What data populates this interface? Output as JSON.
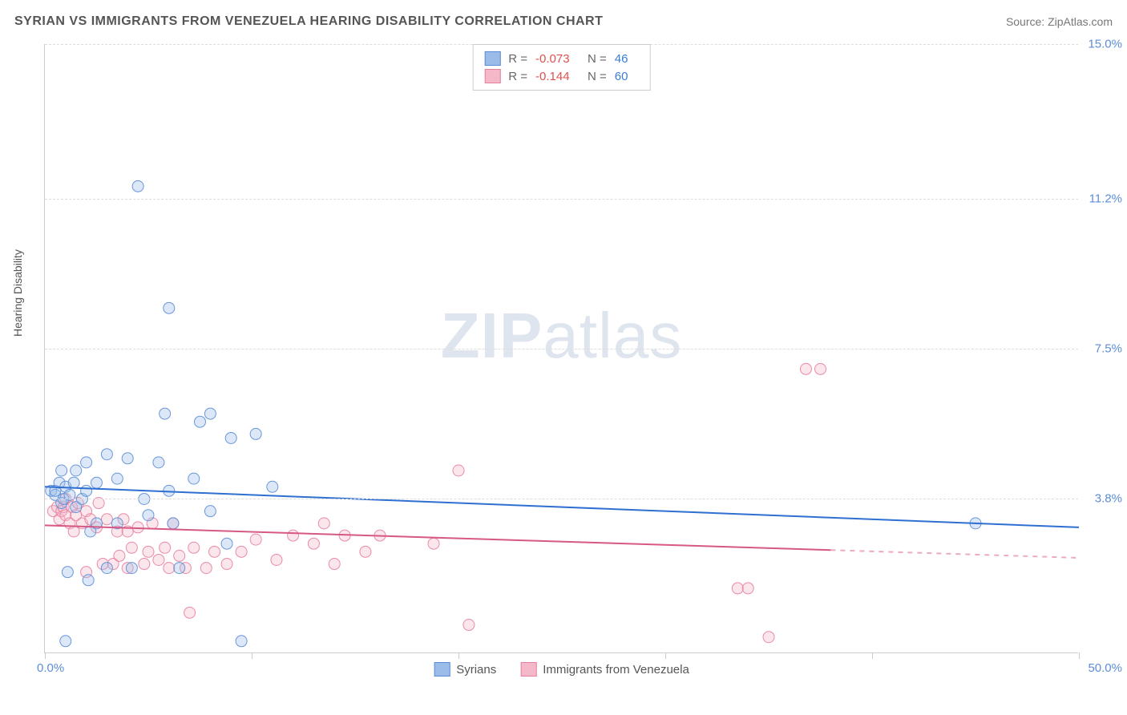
{
  "header": {
    "title": "SYRIAN VS IMMIGRANTS FROM VENEZUELA HEARING DISABILITY CORRELATION CHART",
    "source": "Source: ZipAtlas.com"
  },
  "ylabel": "Hearing Disability",
  "watermark_bold": "ZIP",
  "watermark_light": "atlas",
  "chart": {
    "type": "scatter",
    "xlim": [
      0,
      50
    ],
    "ylim": [
      0,
      15
    ],
    "ytick_values": [
      3.8,
      7.5,
      11.2,
      15.0
    ],
    "ytick_labels": [
      "3.8%",
      "7.5%",
      "11.2%",
      "15.0%"
    ],
    "xtick_values": [
      0,
      10,
      20,
      30,
      40,
      50
    ],
    "xlabel_0": "0.0%",
    "xlabel_max": "50.0%",
    "background_color": "#ffffff",
    "grid_color": "#dddddd",
    "marker_radius": 7,
    "marker_fill_opacity": 0.35,
    "marker_stroke_opacity": 0.9,
    "line_width": 2
  },
  "series": [
    {
      "name": "Syrians",
      "color_fill": "#9bbce8",
      "color_stroke": "#5b8dd6",
      "color_line": "#2e6fd1",
      "R": "-0.073",
      "N": "46",
      "trend": {
        "x1": 0,
        "y1": 4.1,
        "x2": 50,
        "y2": 3.1
      },
      "trend_dash_from_x": 50,
      "points": [
        [
          0.3,
          4.0
        ],
        [
          0.5,
          3.9
        ],
        [
          0.5,
          4.0
        ],
        [
          0.7,
          4.2
        ],
        [
          0.8,
          3.7
        ],
        [
          0.8,
          4.5
        ],
        [
          0.9,
          3.8
        ],
        [
          1.0,
          4.1
        ],
        [
          1.0,
          0.3
        ],
        [
          1.1,
          2.0
        ],
        [
          1.2,
          3.9
        ],
        [
          1.4,
          4.2
        ],
        [
          1.5,
          3.6
        ],
        [
          1.5,
          4.5
        ],
        [
          1.8,
          3.8
        ],
        [
          2.0,
          4.7
        ],
        [
          2.0,
          4.0
        ],
        [
          2.1,
          1.8
        ],
        [
          2.2,
          3.0
        ],
        [
          2.5,
          4.2
        ],
        [
          2.5,
          3.2
        ],
        [
          3.0,
          4.9
        ],
        [
          3.0,
          2.1
        ],
        [
          3.5,
          3.2
        ],
        [
          3.5,
          4.3
        ],
        [
          4.0,
          4.8
        ],
        [
          4.2,
          2.1
        ],
        [
          4.5,
          11.5
        ],
        [
          4.8,
          3.8
        ],
        [
          5.0,
          3.4
        ],
        [
          5.5,
          4.7
        ],
        [
          5.8,
          5.9
        ],
        [
          6.0,
          8.5
        ],
        [
          6.0,
          4.0
        ],
        [
          6.2,
          3.2
        ],
        [
          6.5,
          2.1
        ],
        [
          7.2,
          4.3
        ],
        [
          7.5,
          5.7
        ],
        [
          8.0,
          5.9
        ],
        [
          8.0,
          3.5
        ],
        [
          8.8,
          2.7
        ],
        [
          9.0,
          5.3
        ],
        [
          9.5,
          0.3
        ],
        [
          10.2,
          5.4
        ],
        [
          11.0,
          4.1
        ],
        [
          45.0,
          3.2
        ]
      ]
    },
    {
      "name": "Immigrants from Venezuela",
      "color_fill": "#f4b8c8",
      "color_stroke": "#e77fa0",
      "color_line": "#d65885",
      "R": "-0.144",
      "N": "60",
      "trend": {
        "x1": 0,
        "y1": 3.15,
        "x2": 50,
        "y2": 2.35
      },
      "trend_dash_from_x": 38,
      "points": [
        [
          0.4,
          3.5
        ],
        [
          0.6,
          3.6
        ],
        [
          0.7,
          3.3
        ],
        [
          0.8,
          3.5
        ],
        [
          0.9,
          3.6
        ],
        [
          1.0,
          3.4
        ],
        [
          1.0,
          3.8
        ],
        [
          1.2,
          3.2
        ],
        [
          1.3,
          3.6
        ],
        [
          1.4,
          3.0
        ],
        [
          1.5,
          3.4
        ],
        [
          1.6,
          3.7
        ],
        [
          1.8,
          3.2
        ],
        [
          2.0,
          3.5
        ],
        [
          2.0,
          2.0
        ],
        [
          2.2,
          3.3
        ],
        [
          2.5,
          3.1
        ],
        [
          2.6,
          3.7
        ],
        [
          2.8,
          2.2
        ],
        [
          3.0,
          3.3
        ],
        [
          3.3,
          2.2
        ],
        [
          3.5,
          3.0
        ],
        [
          3.6,
          2.4
        ],
        [
          3.8,
          3.3
        ],
        [
          4.0,
          2.1
        ],
        [
          4.0,
          3.0
        ],
        [
          4.2,
          2.6
        ],
        [
          4.5,
          3.1
        ],
        [
          4.8,
          2.2
        ],
        [
          5.0,
          2.5
        ],
        [
          5.2,
          3.2
        ],
        [
          5.5,
          2.3
        ],
        [
          5.8,
          2.6
        ],
        [
          6.0,
          2.1
        ],
        [
          6.2,
          3.2
        ],
        [
          6.5,
          2.4
        ],
        [
          6.8,
          2.1
        ],
        [
          7.0,
          1.0
        ],
        [
          7.2,
          2.6
        ],
        [
          7.8,
          2.1
        ],
        [
          8.2,
          2.5
        ],
        [
          8.8,
          2.2
        ],
        [
          9.5,
          2.5
        ],
        [
          10.2,
          2.8
        ],
        [
          11.2,
          2.3
        ],
        [
          12.0,
          2.9
        ],
        [
          13.0,
          2.7
        ],
        [
          13.5,
          3.2
        ],
        [
          14.0,
          2.2
        ],
        [
          14.5,
          2.9
        ],
        [
          15.5,
          2.5
        ],
        [
          16.2,
          2.9
        ],
        [
          18.8,
          2.7
        ],
        [
          20.0,
          4.5
        ],
        [
          20.5,
          0.7
        ],
        [
          33.5,
          1.6
        ],
        [
          34.0,
          1.6
        ],
        [
          35.0,
          0.4
        ],
        [
          36.8,
          7.0
        ],
        [
          37.5,
          7.0
        ]
      ]
    }
  ],
  "stats_labels": {
    "R": "R =",
    "N": "N ="
  },
  "legend_labels": [
    "Syrians",
    "Immigrants from Venezuela"
  ]
}
